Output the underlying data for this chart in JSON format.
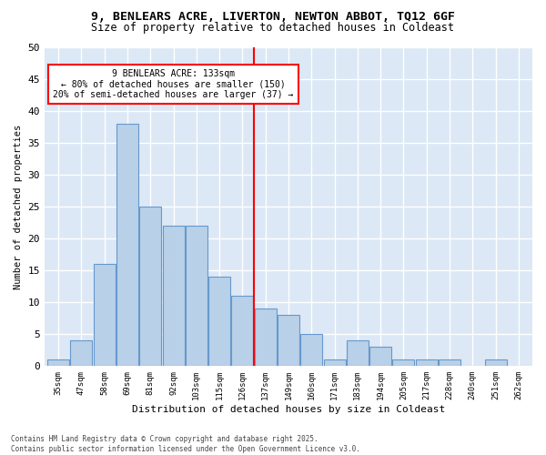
{
  "title_line1": "9, BENLEARS ACRE, LIVERTON, NEWTON ABBOT, TQ12 6GF",
  "title_line2": "Size of property relative to detached houses in Coldeast",
  "xlabel": "Distribution of detached houses by size in Coldeast",
  "ylabel": "Number of detached properties",
  "footnote": "Contains HM Land Registry data © Crown copyright and database right 2025.\nContains public sector information licensed under the Open Government Licence v3.0.",
  "categories": [
    "35sqm",
    "47sqm",
    "58sqm",
    "69sqm",
    "81sqm",
    "92sqm",
    "103sqm",
    "115sqm",
    "126sqm",
    "137sqm",
    "149sqm",
    "160sqm",
    "171sqm",
    "183sqm",
    "194sqm",
    "205sqm",
    "217sqm",
    "228sqm",
    "240sqm",
    "251sqm",
    "262sqm"
  ],
  "values": [
    1,
    4,
    16,
    38,
    25,
    22,
    22,
    14,
    11,
    9,
    8,
    5,
    1,
    4,
    3,
    1,
    1,
    1,
    0,
    1,
    0
  ],
  "bar_color": "#b8d0e8",
  "bar_edge_color": "#6699cc",
  "background_color": "#dce8f5",
  "grid_color": "#ffffff",
  "vline_x_index": 8.5,
  "annotation_line1": "9 BENLEARS ACRE: 133sqm",
  "annotation_line2": "← 80% of detached houses are smaller (150)",
  "annotation_line3": "20% of semi-detached houses are larger (37) →",
  "ylim": [
    0,
    50
  ],
  "yticks": [
    0,
    5,
    10,
    15,
    20,
    25,
    30,
    35,
    40,
    45,
    50
  ]
}
